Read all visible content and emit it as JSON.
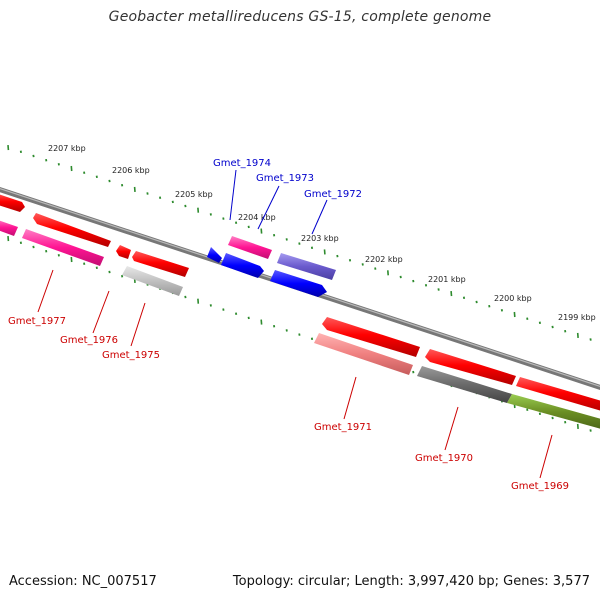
{
  "title": "Geobacter metallireducens GS-15, complete genome",
  "footer": {
    "accession": "Accession: NC_007517",
    "summary": "Topology: circular; Length: 3,997,420 bp; Genes: 3,577"
  },
  "colors": {
    "backbone": "#777777",
    "tick": "#2e8b2e",
    "forward_label": "#0000cc",
    "reverse_label": "#cc0000",
    "kbp_label": "#222222"
  },
  "scale": {
    "kbp_labels": [
      "2207 kbp",
      "2206 kbp",
      "2205 kbp",
      "2204 kbp",
      "2203 kbp",
      "2202 kbp",
      "2201 kbp",
      "2200 kbp",
      "2199 kbp"
    ]
  },
  "genes": [
    {
      "id": "Gmet_1977",
      "strand": "reverse",
      "labeled": true
    },
    {
      "id": "Gmet_1976",
      "strand": "reverse",
      "labeled": true
    },
    {
      "id": "Gmet_1975",
      "strand": "reverse",
      "labeled": true
    },
    {
      "id": "Gmet_1974",
      "strand": "forward",
      "labeled": true
    },
    {
      "id": "Gmet_1973",
      "strand": "forward",
      "labeled": true
    },
    {
      "id": "Gmet_1972",
      "strand": "forward",
      "labeled": true
    },
    {
      "id": "Gmet_1971",
      "strand": "reverse",
      "labeled": true
    },
    {
      "id": "Gmet_1970",
      "strand": "reverse",
      "labeled": true
    },
    {
      "id": "Gmet_1969",
      "strand": "reverse",
      "labeled": true
    }
  ]
}
